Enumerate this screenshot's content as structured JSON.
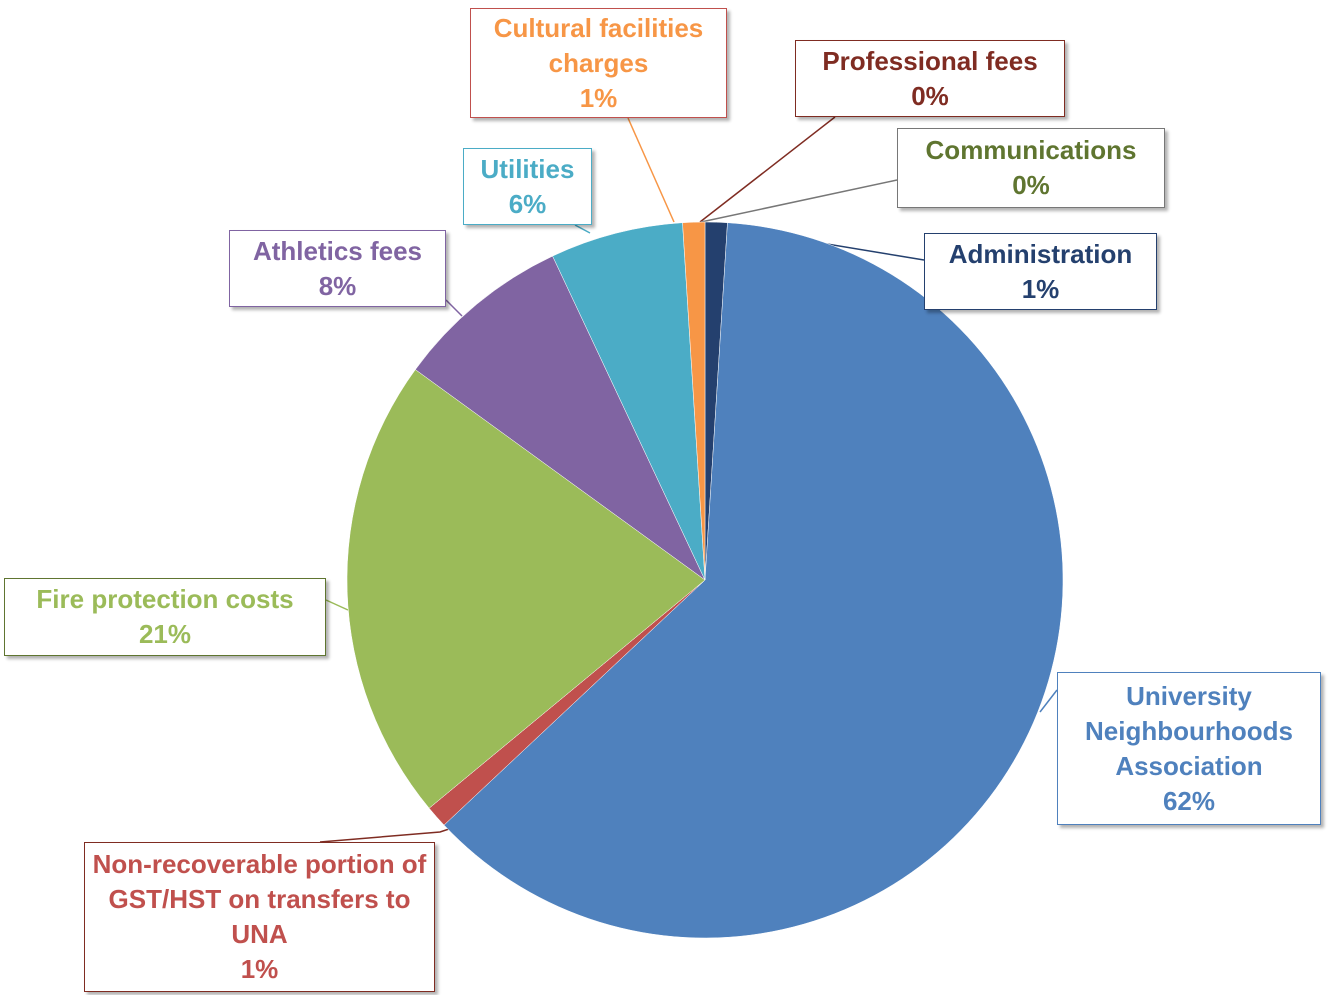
{
  "chart_data": {
    "type": "pie",
    "categories": [
      "Professional fees",
      "Communications",
      "Administration",
      "University Neighbourhoods Association",
      "Non-recoverable portion of GST/HST on transfers to UNA",
      "Fire protection costs",
      "Athletics fees",
      "Utilities",
      "Cultural facilities charges"
    ],
    "values": [
      0,
      0,
      1,
      62,
      1,
      21,
      8,
      6,
      1
    ],
    "value_labels": [
      "0%",
      "0%",
      "1%",
      "62%",
      "1%",
      "21%",
      "8%",
      "6%",
      "1%"
    ],
    "colors": [
      "#7f2c22",
      "#5f7530",
      "#24406e",
      "#4f81bd",
      "#c0504d",
      "#9bbb59",
      "#8064a2",
      "#4bacc6",
      "#f79646"
    ]
  }
}
